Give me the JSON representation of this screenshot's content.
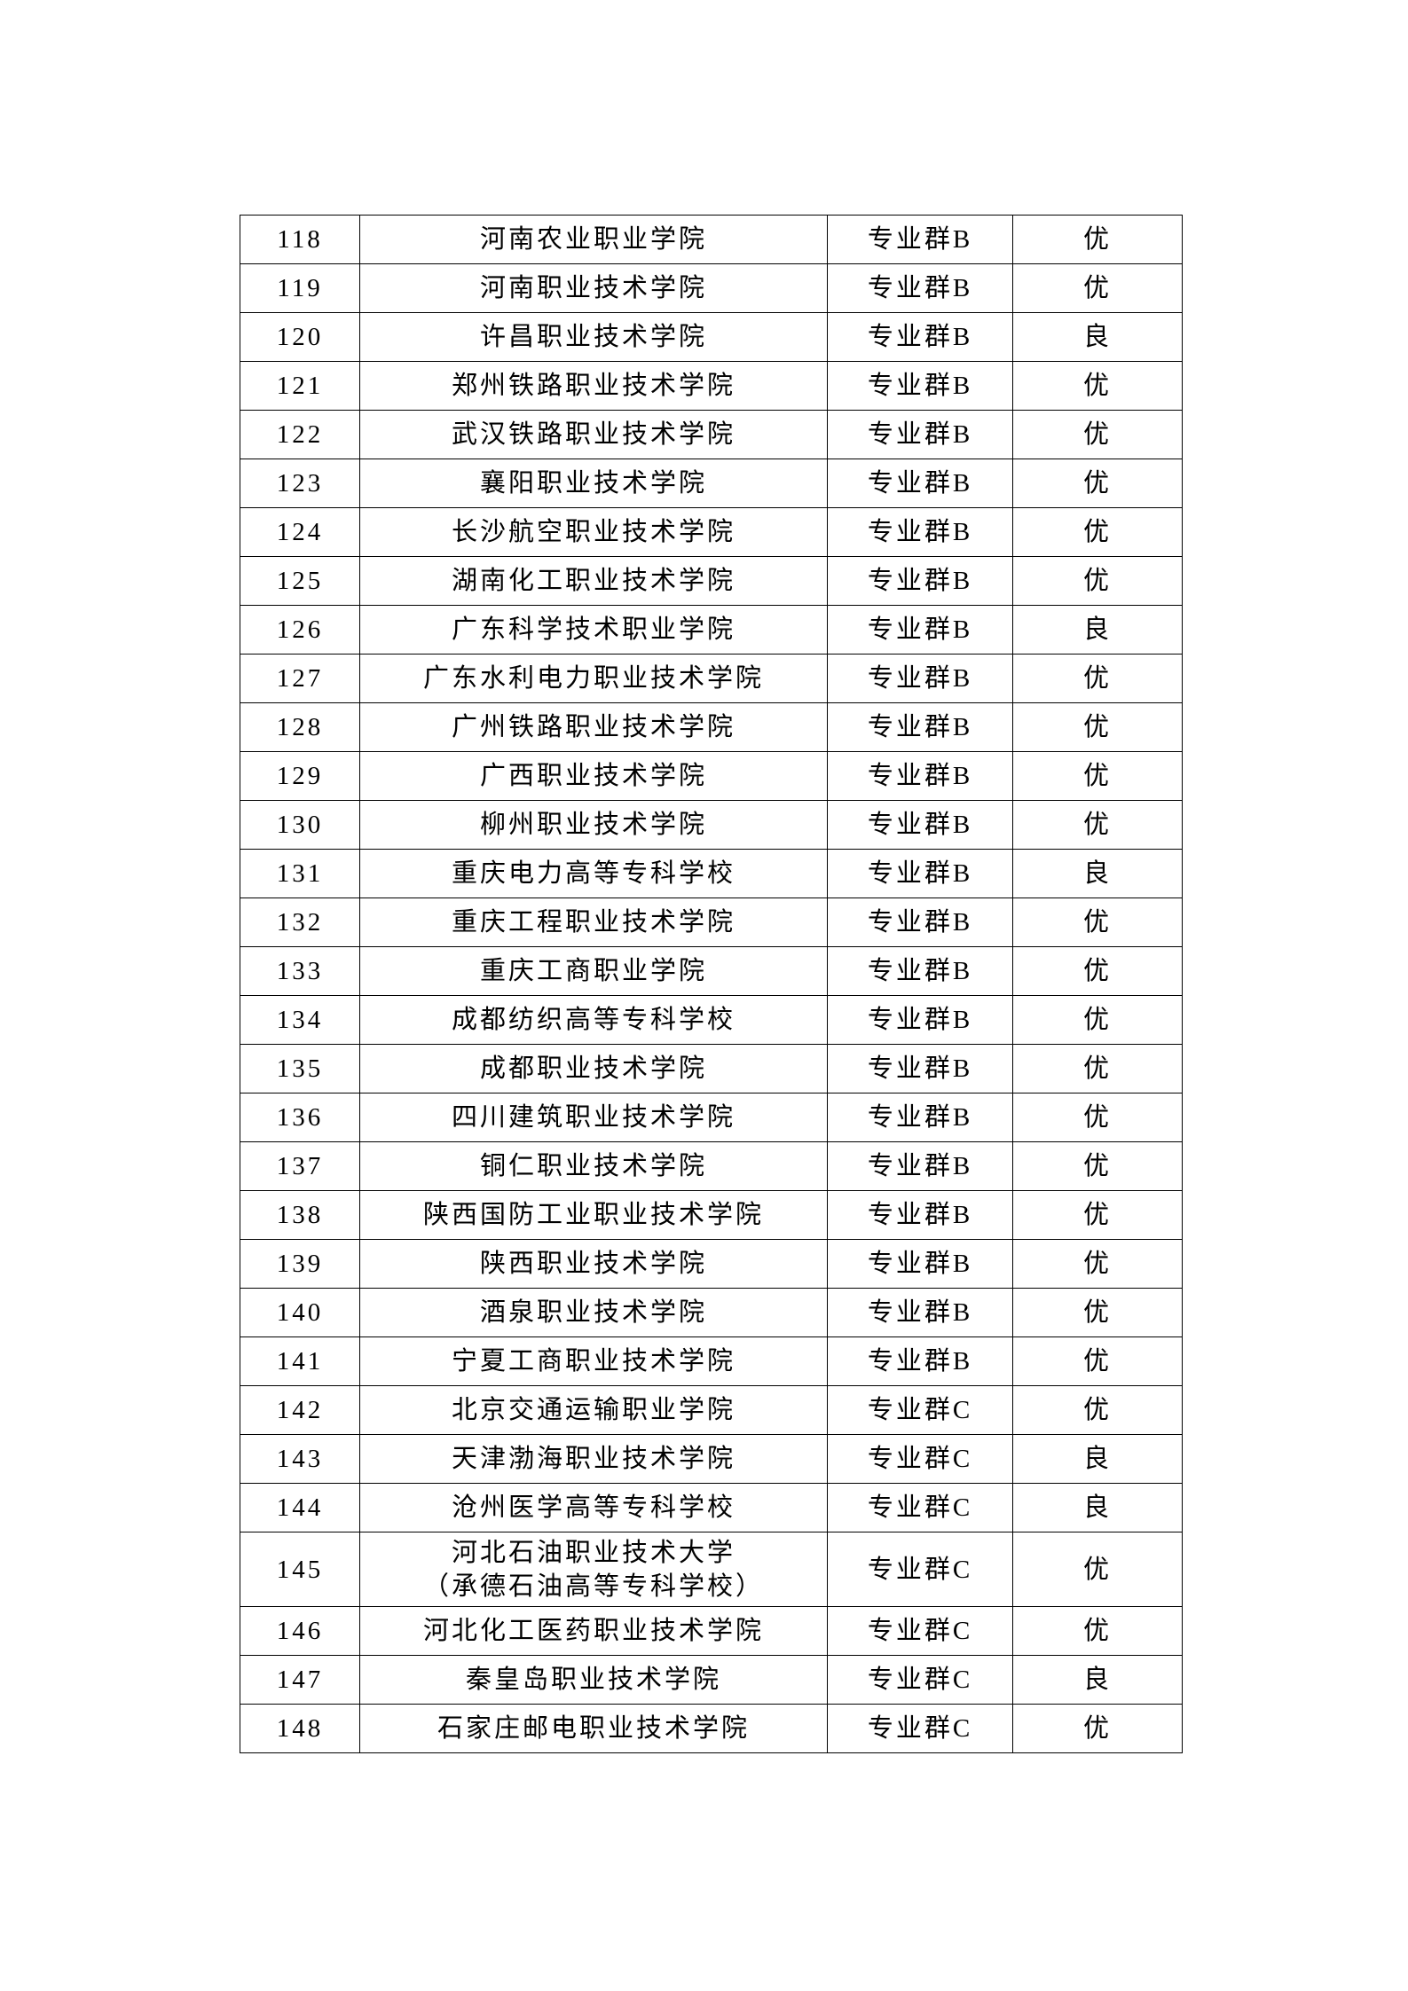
{
  "rows": [
    {
      "no": "118",
      "name": [
        "河南农业职业学院"
      ],
      "group": "专业群B",
      "grade": "优"
    },
    {
      "no": "119",
      "name": [
        "河南职业技术学院"
      ],
      "group": "专业群B",
      "grade": "优"
    },
    {
      "no": "120",
      "name": [
        "许昌职业技术学院"
      ],
      "group": "专业群B",
      "grade": "良"
    },
    {
      "no": "121",
      "name": [
        "郑州铁路职业技术学院"
      ],
      "group": "专业群B",
      "grade": "优"
    },
    {
      "no": "122",
      "name": [
        "武汉铁路职业技术学院"
      ],
      "group": "专业群B",
      "grade": "优"
    },
    {
      "no": "123",
      "name": [
        "襄阳职业技术学院"
      ],
      "group": "专业群B",
      "grade": "优"
    },
    {
      "no": "124",
      "name": [
        "长沙航空职业技术学院"
      ],
      "group": "专业群B",
      "grade": "优"
    },
    {
      "no": "125",
      "name": [
        "湖南化工职业技术学院"
      ],
      "group": "专业群B",
      "grade": "优"
    },
    {
      "no": "126",
      "name": [
        "广东科学技术职业学院"
      ],
      "group": "专业群B",
      "grade": "良"
    },
    {
      "no": "127",
      "name": [
        "广东水利电力职业技术学院"
      ],
      "group": "专业群B",
      "grade": "优"
    },
    {
      "no": "128",
      "name": [
        "广州铁路职业技术学院"
      ],
      "group": "专业群B",
      "grade": "优"
    },
    {
      "no": "129",
      "name": [
        "广西职业技术学院"
      ],
      "group": "专业群B",
      "grade": "优"
    },
    {
      "no": "130",
      "name": [
        "柳州职业技术学院"
      ],
      "group": "专业群B",
      "grade": "优"
    },
    {
      "no": "131",
      "name": [
        "重庆电力高等专科学校"
      ],
      "group": "专业群B",
      "grade": "良"
    },
    {
      "no": "132",
      "name": [
        "重庆工程职业技术学院"
      ],
      "group": "专业群B",
      "grade": "优"
    },
    {
      "no": "133",
      "name": [
        "重庆工商职业学院"
      ],
      "group": "专业群B",
      "grade": "优"
    },
    {
      "no": "134",
      "name": [
        "成都纺织高等专科学校"
      ],
      "group": "专业群B",
      "grade": "优"
    },
    {
      "no": "135",
      "name": [
        "成都职业技术学院"
      ],
      "group": "专业群B",
      "grade": "优"
    },
    {
      "no": "136",
      "name": [
        "四川建筑职业技术学院"
      ],
      "group": "专业群B",
      "grade": "优"
    },
    {
      "no": "137",
      "name": [
        "铜仁职业技术学院"
      ],
      "group": "专业群B",
      "grade": "优"
    },
    {
      "no": "138",
      "name": [
        "陕西国防工业职业技术学院"
      ],
      "group": "专业群B",
      "grade": "优"
    },
    {
      "no": "139",
      "name": [
        "陕西职业技术学院"
      ],
      "group": "专业群B",
      "grade": "优"
    },
    {
      "no": "140",
      "name": [
        "酒泉职业技术学院"
      ],
      "group": "专业群B",
      "grade": "优"
    },
    {
      "no": "141",
      "name": [
        "宁夏工商职业技术学院"
      ],
      "group": "专业群B",
      "grade": "优"
    },
    {
      "no": "142",
      "name": [
        "北京交通运输职业学院"
      ],
      "group": "专业群C",
      "grade": "优"
    },
    {
      "no": "143",
      "name": [
        "天津渤海职业技术学院"
      ],
      "group": "专业群C",
      "grade": "良"
    },
    {
      "no": "144",
      "name": [
        "沧州医学高等专科学校"
      ],
      "group": "专业群C",
      "grade": "良"
    },
    {
      "no": "145",
      "name": [
        "河北石油职业技术大学",
        "（承德石油高等专科学校）"
      ],
      "group": "专业群C",
      "grade": "优"
    },
    {
      "no": "146",
      "name": [
        "河北化工医药职业技术学院"
      ],
      "group": "专业群C",
      "grade": "优"
    },
    {
      "no": "147",
      "name": [
        "秦皇岛职业技术学院"
      ],
      "group": "专业群C",
      "grade": "良"
    },
    {
      "no": "148",
      "name": [
        "石家庄邮电职业技术学院"
      ],
      "group": "专业群C",
      "grade": "优"
    }
  ]
}
